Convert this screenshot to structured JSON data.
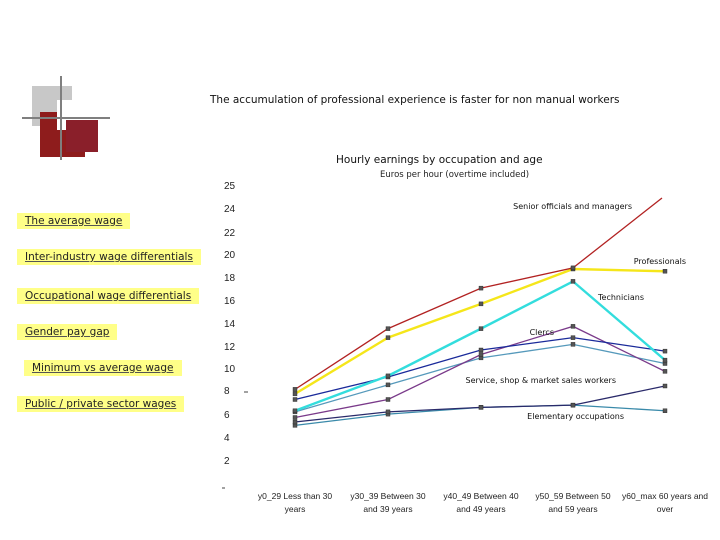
{
  "slide": {
    "title": "The accumulation of professional experience is faster for non manual workers"
  },
  "nav": {
    "items": [
      "The average wage",
      "Inter-industry wage differentials",
      "Occupational wage differentials",
      "Gender pay gap",
      "Minimum vs average wage",
      "Public / private sector wages"
    ]
  },
  "colors": {
    "nav_background": "#ffff88",
    "decor_red": "#8e1c1c",
    "decor_gray": "#c8c8c8"
  },
  "chart_data": {
    "type": "line",
    "title": "Hourly earnings by occupation and age",
    "subtitle": "Euros per hour (overtime included)",
    "yticks": [
      "25",
      "24",
      "22",
      "20",
      "18",
      "16",
      "14",
      "12",
      "10",
      "8",
      "6",
      "4",
      "2"
    ],
    "categories": [
      [
        "y0_29 Less than 30",
        "years"
      ],
      [
        "y30_39 Between 30",
        "and 39 years"
      ],
      [
        "y40_49 Between 40",
        "and 49 years"
      ],
      [
        "y50_59 Between 50",
        "and 59 years"
      ],
      [
        "y60_max 60 years and",
        "over"
      ]
    ],
    "grid": false,
    "legend": "inline labels",
    "series": [
      {
        "name": "Senior officials and managers",
        "color": "#b22222",
        "values": [
          9.2,
          14.6,
          18.2,
          20.0,
          25.6
        ]
      },
      {
        "name": "Professionals",
        "color": "#f5e61a",
        "values": [
          8.8,
          13.8,
          16.8,
          19.9,
          19.7
        ]
      },
      {
        "name": "Technicians",
        "color": "#33dddd",
        "values": [
          7.3,
          10.4,
          14.6,
          18.8,
          11.8
        ]
      },
      {
        "name": "Clercs",
        "color": "#7a3a8a",
        "values": [
          6.7,
          8.3,
          12.3,
          14.8,
          10.8
        ]
      },
      {
        "name": "Service, shop & market sales workers",
        "color": "#1a2a9a",
        "values": [
          8.3,
          10.3,
          12.7,
          13.8,
          12.6
        ]
      },
      {
        "name": "Elementary occupations",
        "color": "#2a2a6a",
        "values": [
          6.3,
          7.2,
          7.6,
          7.8,
          9.5
        ]
      },
      {
        "name": "",
        "color": "#3a8aaa",
        "values": [
          6.0,
          7.0,
          7.6,
          7.8,
          7.3
        ]
      },
      {
        "name": "",
        "color": "#5599bb",
        "values": [
          7.2,
          9.6,
          12.0,
          13.2,
          11.5
        ]
      }
    ]
  }
}
